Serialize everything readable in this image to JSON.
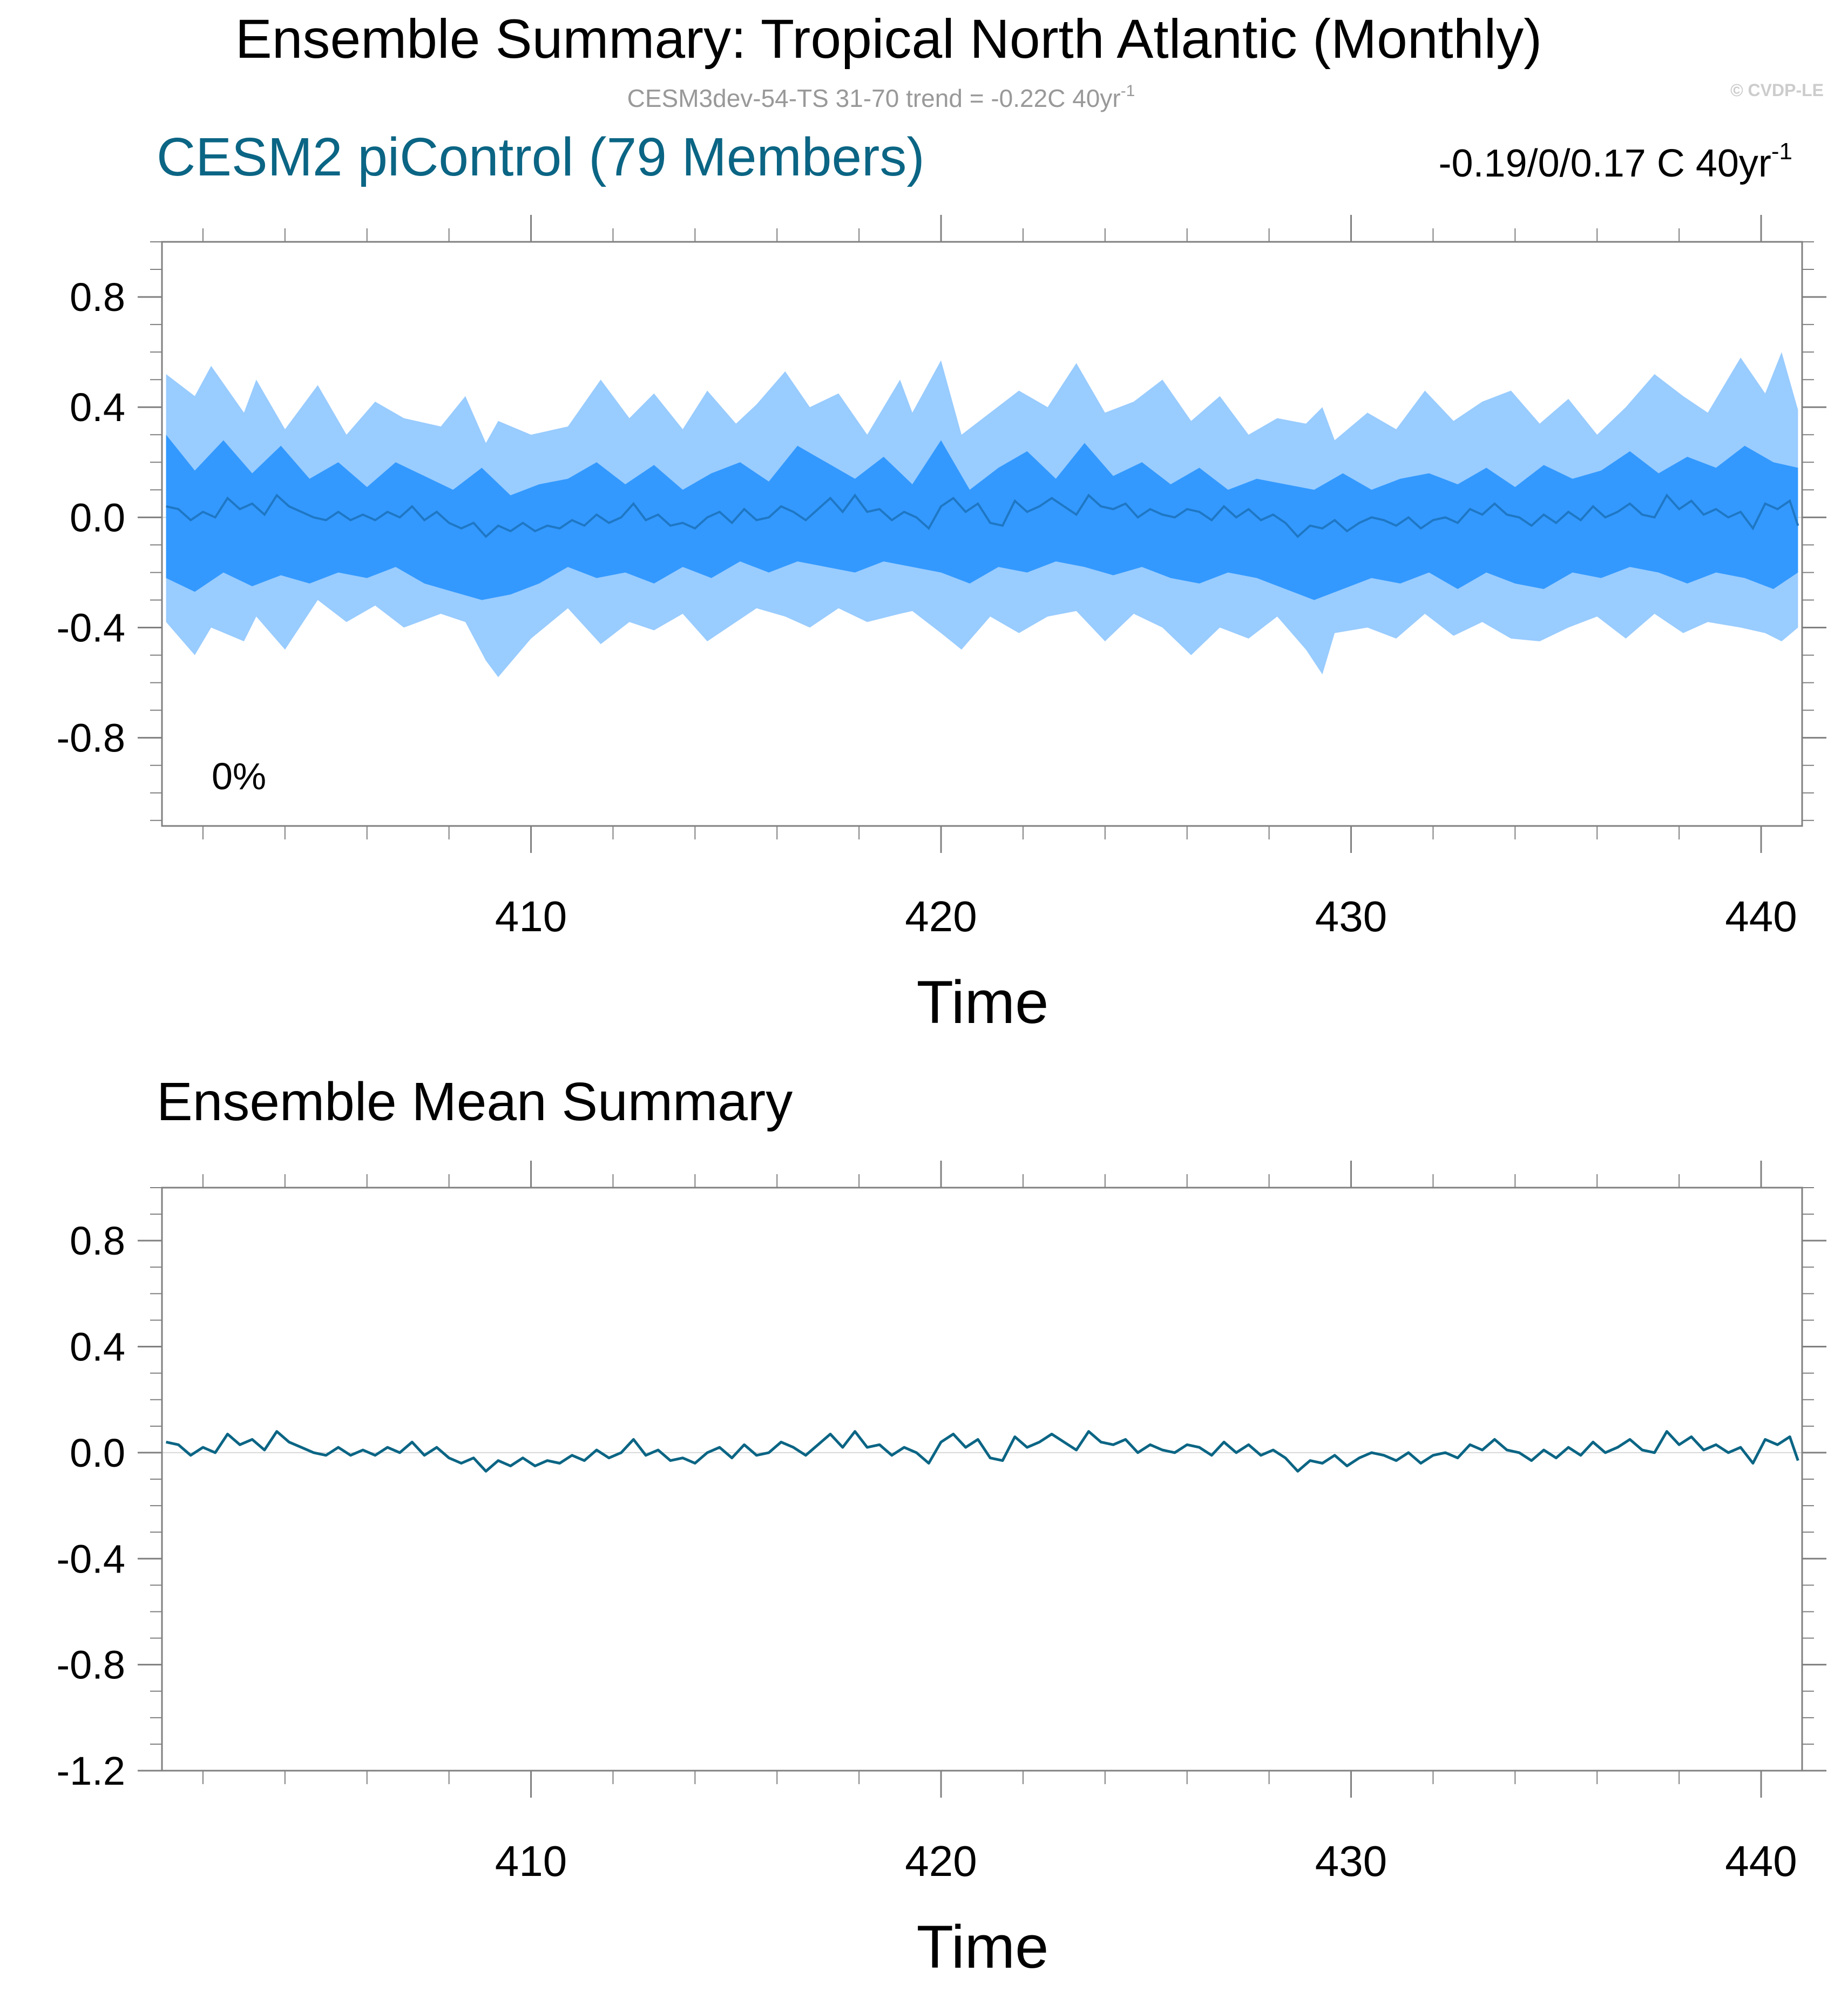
{
  "header": {
    "title": "Ensemble Summary: Tropical North Atlantic (Monthly)",
    "subtitle_main": "CESM3dev-54-TS 31-70 trend = -0.22C 40yr",
    "subtitle_sup": "-1",
    "watermark": "© CVDP-LE"
  },
  "colors": {
    "outer_band": "#99ccff",
    "inner_band": "#3399ff",
    "ens_median_line": "#1f77c4",
    "ens_mean_line": "#0b6584",
    "model_title": "#0b6584",
    "axis": "#808080",
    "text": "#000000",
    "subtitle": "#999999",
    "watermark": "#cccccc"
  },
  "chart_data": [
    {
      "type": "area",
      "title": "CESM2 piControl (79 Members)",
      "stat_main": "-0.19/0/0.17 C 40yr",
      "stat_sup": "-1",
      "inset_label": "0%",
      "xlabel": "Time",
      "ylabel": "",
      "xlim": [
        401.0,
        441.0
      ],
      "ylim": [
        -1.12,
        1.0
      ],
      "x_ticks": [
        410,
        420,
        430,
        440
      ],
      "x_tick_labels": [
        "410",
        "420",
        "430",
        "440"
      ],
      "y_ticks": [
        0.8,
        0.4,
        0.0,
        -0.4,
        -0.8
      ],
      "y_tick_labels": [
        "0.8",
        "0.4",
        "0.0",
        "-0.4",
        "-0.8"
      ],
      "grid": false,
      "series": [
        {
          "x": [
            401.1,
            401.8,
            402.2,
            403.0,
            403.3,
            404.0,
            404.8,
            405.5,
            406.2,
            406.9,
            407.8,
            408.4,
            408.9,
            409.2,
            410.0,
            410.9,
            411.7,
            412.4,
            413.0,
            413.7,
            414.3,
            415.0,
            415.5,
            416.2,
            416.8,
            417.5,
            418.2,
            419.0,
            419.3,
            420.0,
            420.5,
            421.2,
            421.9,
            422.6,
            423.3,
            424.0,
            424.7,
            425.4,
            426.1,
            426.8,
            427.5,
            428.2,
            428.9,
            429.3,
            429.6,
            430.4,
            431.1,
            431.8,
            432.5,
            433.2,
            433.9,
            434.6,
            435.3,
            436.0,
            436.7,
            437.4,
            438.1,
            438.7,
            439.5,
            440.1,
            440.5,
            440.9
          ],
          "upper": [
            0.52,
            0.44,
            0.55,
            0.38,
            0.5,
            0.32,
            0.48,
            0.3,
            0.42,
            0.36,
            0.33,
            0.44,
            0.27,
            0.35,
            0.3,
            0.33,
            0.5,
            0.36,
            0.45,
            0.32,
            0.46,
            0.34,
            0.41,
            0.53,
            0.4,
            0.45,
            0.3,
            0.5,
            0.38,
            0.57,
            0.3,
            0.38,
            0.46,
            0.4,
            0.56,
            0.38,
            0.42,
            0.5,
            0.35,
            0.44,
            0.3,
            0.36,
            0.34,
            0.4,
            0.28,
            0.38,
            0.32,
            0.46,
            0.35,
            0.42,
            0.46,
            0.34,
            0.43,
            0.3,
            0.4,
            0.52,
            0.44,
            0.38,
            0.58,
            0.45,
            0.6,
            0.39
          ],
          "lower": [
            -0.38,
            -0.5,
            -0.4,
            -0.45,
            -0.36,
            -0.48,
            -0.3,
            -0.38,
            -0.32,
            -0.4,
            -0.35,
            -0.38,
            -0.52,
            -0.58,
            -0.44,
            -0.33,
            -0.46,
            -0.38,
            -0.41,
            -0.35,
            -0.45,
            -0.38,
            -0.33,
            -0.36,
            -0.4,
            -0.33,
            -0.38,
            -0.35,
            -0.34,
            -0.42,
            -0.48,
            -0.36,
            -0.42,
            -0.36,
            -0.34,
            -0.45,
            -0.35,
            -0.4,
            -0.5,
            -0.4,
            -0.44,
            -0.36,
            -0.48,
            -0.57,
            -0.42,
            -0.4,
            -0.44,
            -0.35,
            -0.43,
            -0.38,
            -0.44,
            -0.45,
            -0.4,
            -0.36,
            -0.44,
            -0.35,
            -0.42,
            -0.38,
            -0.4,
            -0.42,
            -0.45,
            -0.4
          ]
        },
        {
          "x": [
            401.1,
            401.8,
            402.5,
            403.2,
            403.9,
            404.6,
            405.3,
            406.0,
            406.7,
            407.4,
            408.1,
            408.8,
            409.5,
            410.2,
            410.9,
            411.6,
            412.3,
            413.0,
            413.7,
            414.4,
            415.1,
            415.8,
            416.5,
            417.2,
            417.9,
            418.6,
            419.3,
            420.0,
            420.7,
            421.4,
            422.1,
            422.8,
            423.5,
            424.2,
            424.9,
            425.6,
            426.3,
            427.0,
            427.7,
            428.4,
            429.1,
            429.8,
            430.5,
            431.2,
            431.9,
            432.6,
            433.3,
            434.0,
            434.7,
            435.4,
            436.1,
            436.8,
            437.5,
            438.2,
            438.9,
            439.6,
            440.3,
            440.9
          ],
          "upper": [
            0.3,
            0.17,
            0.28,
            0.16,
            0.26,
            0.14,
            0.2,
            0.11,
            0.2,
            0.15,
            0.1,
            0.18,
            0.08,
            0.12,
            0.14,
            0.2,
            0.12,
            0.19,
            0.1,
            0.16,
            0.2,
            0.13,
            0.26,
            0.2,
            0.14,
            0.22,
            0.12,
            0.28,
            0.1,
            0.18,
            0.24,
            0.14,
            0.27,
            0.15,
            0.2,
            0.12,
            0.18,
            0.1,
            0.14,
            0.12,
            0.1,
            0.16,
            0.1,
            0.14,
            0.16,
            0.12,
            0.18,
            0.11,
            0.19,
            0.14,
            0.17,
            0.24,
            0.16,
            0.22,
            0.18,
            0.26,
            0.2,
            0.18
          ],
          "lower": [
            -0.22,
            -0.27,
            -0.2,
            -0.25,
            -0.21,
            -0.24,
            -0.2,
            -0.22,
            -0.18,
            -0.24,
            -0.27,
            -0.3,
            -0.28,
            -0.24,
            -0.18,
            -0.22,
            -0.2,
            -0.24,
            -0.18,
            -0.22,
            -0.16,
            -0.2,
            -0.16,
            -0.18,
            -0.2,
            -0.16,
            -0.18,
            -0.2,
            -0.24,
            -0.18,
            -0.2,
            -0.16,
            -0.18,
            -0.21,
            -0.18,
            -0.22,
            -0.24,
            -0.2,
            -0.22,
            -0.26,
            -0.3,
            -0.26,
            -0.22,
            -0.24,
            -0.2,
            -0.26,
            -0.2,
            -0.24,
            -0.26,
            -0.2,
            -0.22,
            -0.18,
            -0.2,
            -0.24,
            -0.2,
            -0.22,
            -0.26,
            -0.2
          ]
        }
      ]
    },
    {
      "type": "line",
      "title": "Ensemble Mean Summary",
      "xlabel": "Time",
      "ylabel": "",
      "xlim": [
        401.0,
        441.0
      ],
      "ylim": [
        -1.2,
        1.0
      ],
      "x_ticks": [
        410,
        420,
        430,
        440
      ],
      "x_tick_labels": [
        "410",
        "420",
        "430",
        "440"
      ],
      "y_ticks": [
        0.8,
        0.4,
        0.0,
        -0.4,
        -0.8,
        -1.2
      ],
      "y_tick_labels": [
        "0.8",
        "0.4",
        "0.0",
        "-0.4",
        "-0.8",
        "-1.2"
      ],
      "grid": false,
      "series": [
        {
          "x": [
            401.1,
            401.4,
            401.7,
            402.0,
            402.3,
            402.6,
            402.9,
            403.2,
            403.5,
            403.8,
            404.1,
            404.4,
            404.7,
            405.0,
            405.3,
            405.6,
            405.9,
            406.2,
            406.5,
            406.8,
            407.1,
            407.4,
            407.7,
            408.0,
            408.3,
            408.6,
            408.9,
            409.2,
            409.5,
            409.8,
            410.1,
            410.4,
            410.7,
            411.0,
            411.3,
            411.6,
            411.9,
            412.2,
            412.5,
            412.8,
            413.1,
            413.4,
            413.7,
            414.0,
            414.3,
            414.6,
            414.9,
            415.2,
            415.5,
            415.8,
            416.1,
            416.4,
            416.7,
            417.0,
            417.3,
            417.6,
            417.9,
            418.2,
            418.5,
            418.8,
            419.1,
            419.4,
            419.7,
            420.0,
            420.3,
            420.6,
            420.9,
            421.2,
            421.5,
            421.8,
            422.1,
            422.4,
            422.7,
            423.0,
            423.3,
            423.6,
            423.9,
            424.2,
            424.5,
            424.8,
            425.1,
            425.4,
            425.7,
            426.0,
            426.3,
            426.6,
            426.9,
            427.2,
            427.5,
            427.8,
            428.1,
            428.4,
            428.7,
            429.0,
            429.3,
            429.6,
            429.9,
            430.2,
            430.5,
            430.8,
            431.1,
            431.4,
            431.7,
            432.0,
            432.3,
            432.6,
            432.9,
            433.2,
            433.5,
            433.8,
            434.1,
            434.4,
            434.7,
            435.0,
            435.3,
            435.6,
            435.9,
            436.2,
            436.5,
            436.8,
            437.1,
            437.4,
            437.7,
            438.0,
            438.3,
            438.6,
            438.9,
            439.2,
            439.5,
            439.8,
            440.1,
            440.4,
            440.7,
            440.9
          ],
          "y": [
            0.04,
            0.03,
            -0.01,
            0.02,
            0.0,
            0.07,
            0.03,
            0.05,
            0.01,
            0.08,
            0.04,
            0.02,
            0.0,
            -0.01,
            0.02,
            -0.01,
            0.01,
            -0.01,
            0.02,
            0.0,
            0.04,
            -0.01,
            0.02,
            -0.02,
            -0.04,
            -0.02,
            -0.07,
            -0.03,
            -0.05,
            -0.02,
            -0.05,
            -0.03,
            -0.04,
            -0.01,
            -0.03,
            0.01,
            -0.02,
            0.0,
            0.05,
            -0.01,
            0.01,
            -0.03,
            -0.02,
            -0.04,
            0.0,
            0.02,
            -0.02,
            0.03,
            -0.01,
            0.0,
            0.04,
            0.02,
            -0.01,
            0.03,
            0.07,
            0.02,
            0.08,
            0.02,
            0.03,
            -0.01,
            0.02,
            0.0,
            -0.04,
            0.04,
            0.07,
            0.02,
            0.05,
            -0.02,
            -0.03,
            0.06,
            0.02,
            0.04,
            0.07,
            0.04,
            0.01,
            0.08,
            0.04,
            0.03,
            0.05,
            0.0,
            0.03,
            0.01,
            0.0,
            0.03,
            0.02,
            -0.01,
            0.04,
            0.0,
            0.03,
            -0.01,
            0.01,
            -0.02,
            -0.07,
            -0.03,
            -0.04,
            -0.01,
            -0.05,
            -0.02,
            0.0,
            -0.01,
            -0.03,
            0.0,
            -0.04,
            -0.01,
            0.0,
            -0.02,
            0.03,
            0.01,
            0.05,
            0.01,
            0.0,
            -0.03,
            0.01,
            -0.02,
            0.02,
            -0.01,
            0.04,
            0.0,
            0.02,
            0.05,
            0.01,
            0.0,
            0.08,
            0.03,
            0.06,
            0.01,
            0.03,
            0.0,
            0.02,
            -0.04,
            0.05,
            0.03,
            0.06,
            -0.03
          ]
        }
      ]
    }
  ]
}
